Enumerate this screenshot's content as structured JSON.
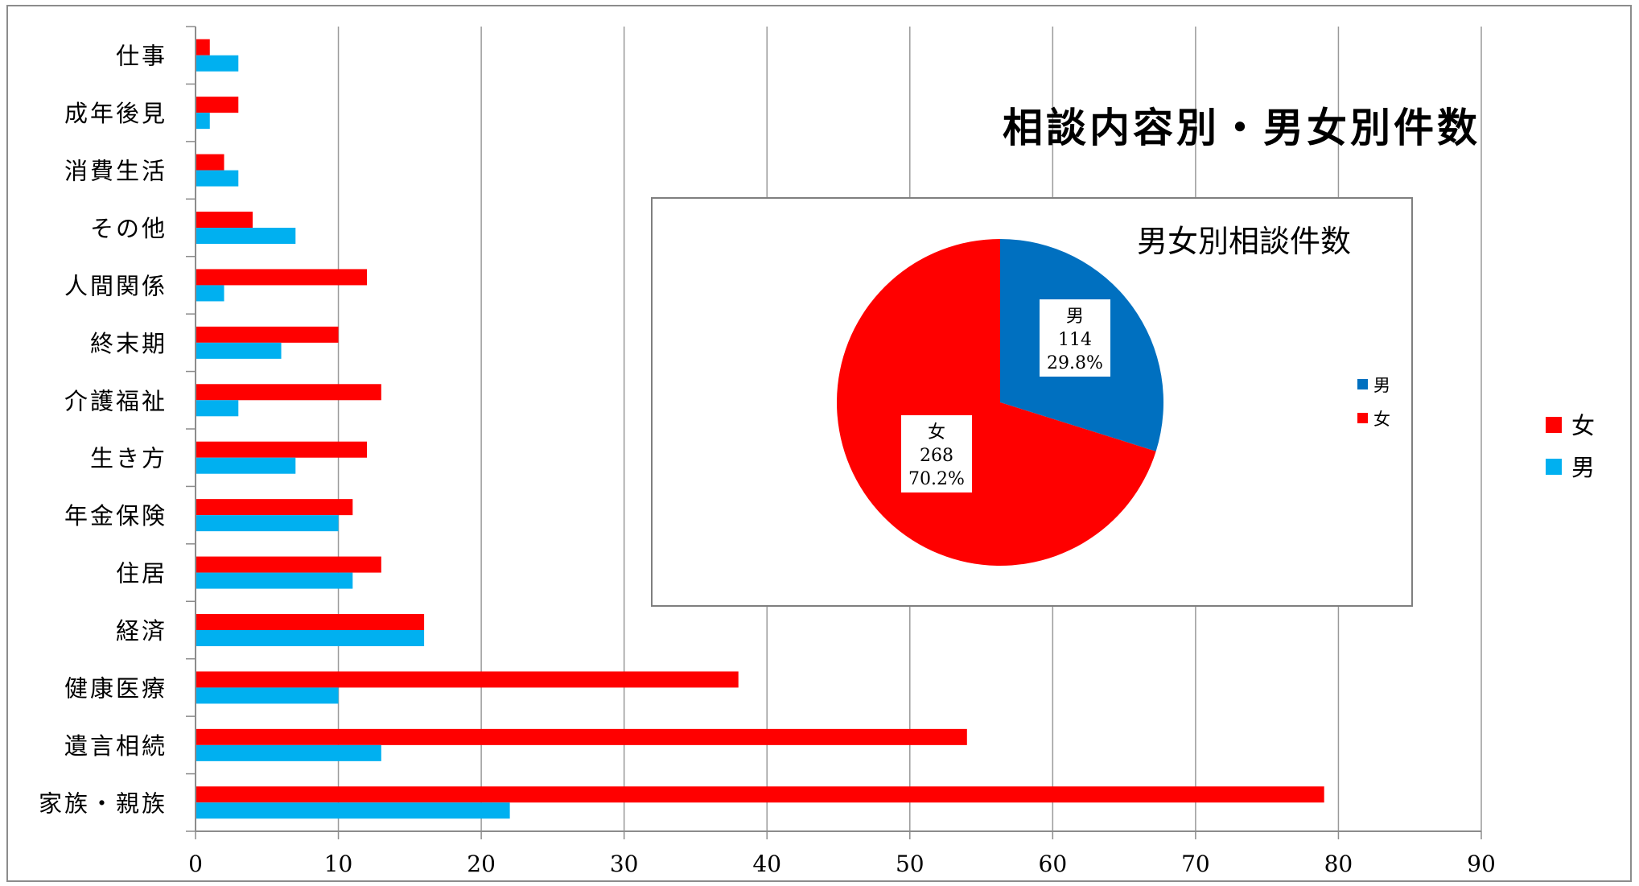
{
  "chart_data": [
    {
      "type": "bar",
      "orientation": "horizontal",
      "title": "相談内容別・男女別件数",
      "categories": [
        "仕事",
        "成年後見",
        "消費生活",
        "その他",
        "人間関係",
        "終末期",
        "介護福祉",
        "生き方",
        "年金保険",
        "住居",
        "経済",
        "健康医療",
        "遺言相続",
        "家族・親族"
      ],
      "series": [
        {
          "name": "女",
          "color": "#ff0000",
          "values": [
            1,
            3,
            2,
            4,
            12,
            10,
            13,
            12,
            11,
            13,
            16,
            38,
            54,
            79
          ]
        },
        {
          "name": "男",
          "color": "#00b0f0",
          "values": [
            3,
            1,
            3,
            7,
            2,
            6,
            3,
            7,
            10,
            11,
            16,
            10,
            13,
            22
          ]
        }
      ],
      "xlim": [
        0,
        90
      ],
      "xticks": [
        "0",
        "10",
        "20",
        "30",
        "40",
        "50",
        "60",
        "70",
        "80",
        "90"
      ],
      "grid": true,
      "legend": "right"
    },
    {
      "type": "pie",
      "title": "男女別相談件数",
      "labels": [
        "男",
        "女"
      ],
      "values": [
        114,
        268
      ],
      "percent_labels": [
        "29.8%",
        "70.2%"
      ],
      "value_labels": [
        "114",
        "268"
      ],
      "colors": [
        "#0070c0",
        "#ff0000"
      ],
      "legend": "right"
    }
  ]
}
